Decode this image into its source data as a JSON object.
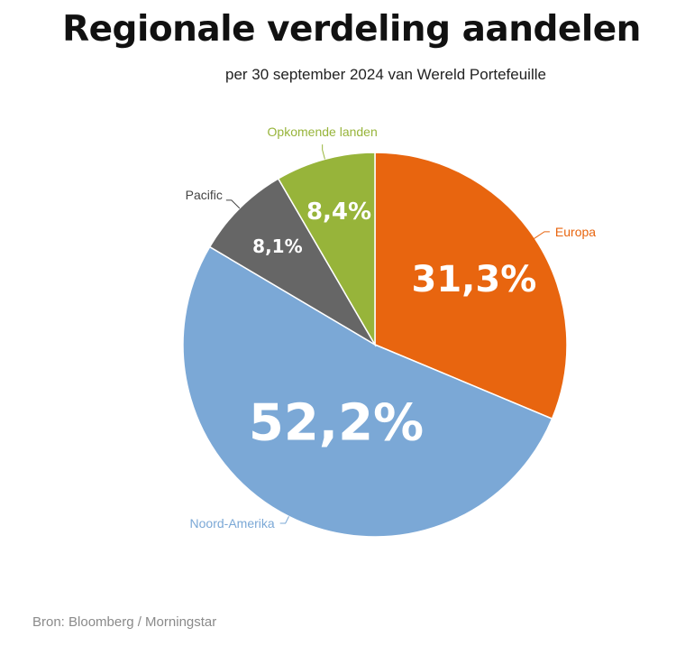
{
  "title": "Regionale verdeling aandelen",
  "subtitle": "per 30 september 2024 van Wereld Portefeuille",
  "source": "Bron: Bloomberg / Morningstar",
  "chart_data": {
    "type": "pie",
    "slices": [
      {
        "label": "Europa",
        "value": 31.3,
        "value_label": "31,3%",
        "color": "#e8650f",
        "label_color": "#e8650f"
      },
      {
        "label": "Noord-Amerika",
        "value": 52.2,
        "value_label": "52,2%",
        "color": "#7ba8d6",
        "label_color": "#7ba8d6"
      },
      {
        "label": "Pacific",
        "value": 8.1,
        "value_label": "8,1%",
        "color": "#666666",
        "label_color": "#444444"
      },
      {
        "label": "Opkomende landen",
        "value": 8.4,
        "value_label": "8,4%",
        "color": "#97b43a",
        "label_color": "#97b43a"
      }
    ]
  }
}
